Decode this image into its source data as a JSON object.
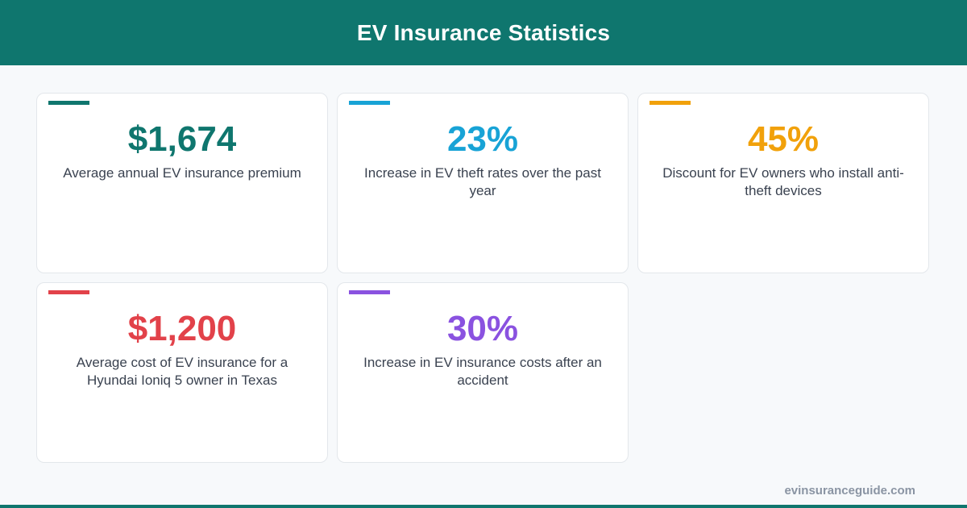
{
  "header": {
    "title": "EV Insurance Statistics"
  },
  "colors": {
    "brand": "#0f766e",
    "teal": "#0f766e",
    "blue": "#18a3d6",
    "orange": "#f1a10b",
    "red": "#e2424a",
    "purple": "#8a52e0"
  },
  "stats": [
    {
      "value": "$1,674",
      "description": "Average annual EV insurance premium",
      "color": "#0f766e"
    },
    {
      "value": "23%",
      "description": "Increase in EV theft rates over the past year",
      "color": "#18a3d6"
    },
    {
      "value": "45%",
      "description": "Discount for EV owners who install anti-theft devices",
      "color": "#f1a10b"
    },
    {
      "value": "$1,200",
      "description": "Average cost of EV insurance for a Hyundai Ioniq 5 owner in Texas",
      "color": "#e2424a"
    },
    {
      "value": "30%",
      "description": "Increase in EV insurance costs after an accident",
      "color": "#8a52e0"
    }
  ],
  "footer": {
    "site": "evinsuranceguide.com"
  }
}
